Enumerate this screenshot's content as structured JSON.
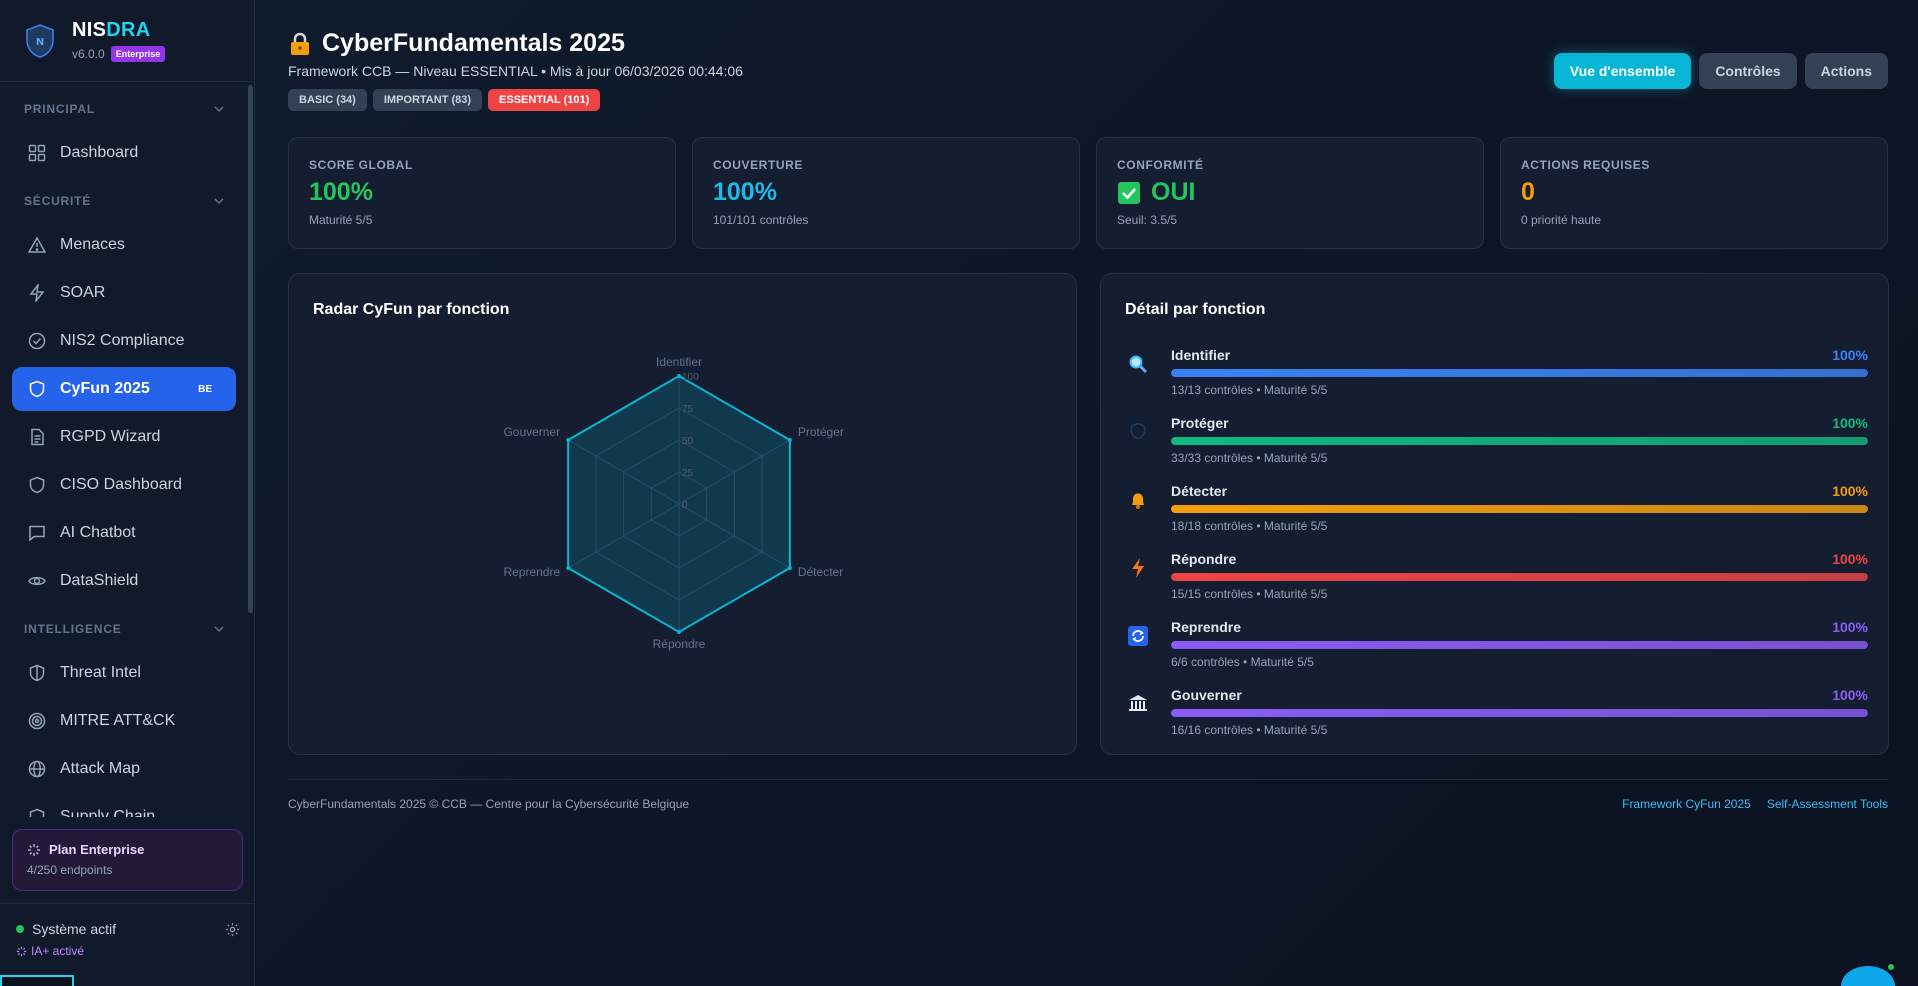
{
  "brand": {
    "name_a": "NIS",
    "name_b": "DRA",
    "version": "v6.0.0",
    "badge": "Enterprise"
  },
  "sidebar": {
    "sections": [
      {
        "title": "PRINCIPAL",
        "items": [
          {
            "label": "Dashboard",
            "icon": "grid-icon"
          }
        ]
      },
      {
        "title": "SÉCURITÉ",
        "items": [
          {
            "label": "Menaces",
            "icon": "warning-icon"
          },
          {
            "label": "SOAR",
            "icon": "lightning-icon"
          },
          {
            "label": "NIS2 Compliance",
            "icon": "check-circle-icon"
          },
          {
            "label": "CyFun 2025",
            "icon": "shield-icon",
            "badge": "BE",
            "active": true
          },
          {
            "label": "RGPD Wizard",
            "icon": "document-icon"
          },
          {
            "label": "CISO Dashboard",
            "icon": "shield-icon"
          },
          {
            "label": "AI Chatbot",
            "icon": "chat-icon"
          },
          {
            "label": "DataShield",
            "icon": "eye-icon"
          }
        ]
      },
      {
        "title": "INTELLIGENCE",
        "items": [
          {
            "label": "Threat Intel",
            "icon": "shield-half-icon"
          },
          {
            "label": "MITRE ATT&CK",
            "icon": "target-icon"
          },
          {
            "label": "Attack Map",
            "icon": "globe-icon"
          },
          {
            "label": "Supply Chain",
            "icon": "shield-icon"
          }
        ]
      }
    ],
    "plan": {
      "title": "Plan Enterprise",
      "sub": "4/250 endpoints"
    },
    "system": {
      "status": "Système actif",
      "ia": "IA+ activé"
    }
  },
  "header": {
    "title": "CyberFundamentals 2025",
    "subtitle": "Framework CCB — Niveau ESSENTIAL • Mis à jour 06/03/2026 00:44:06",
    "tags": {
      "basic": "BASIC (34)",
      "important": "IMPORTANT (83)",
      "essential": "ESSENTIAL (101)"
    },
    "buttons": {
      "overview": "Vue d'ensemble",
      "controls": "Contrôles",
      "actions": "Actions"
    }
  },
  "kpis": [
    {
      "label": "SCORE GLOBAL",
      "value": "100%",
      "sub": "Maturité 5/5",
      "color": "#22c55e"
    },
    {
      "label": "COUVERTURE",
      "value": "100%",
      "sub": "101/101 contrôles",
      "color": "#22b8e6"
    },
    {
      "label": "CONFORMITÉ",
      "value": "OUI",
      "sub": "Seuil: 3.5/5",
      "color": "#22c55e"
    },
    {
      "label": "ACTIONS REQUISES",
      "value": "0",
      "sub": "0 priorité haute",
      "color": "#f59e0b"
    }
  ],
  "radar": {
    "title": "Radar CyFun par fonction",
    "labels": [
      "Identifier",
      "Protéger",
      "Détecter",
      "Répondre",
      "Reprendre",
      "Gouverner"
    ],
    "ticks": [
      "100",
      "75",
      "50",
      "25",
      "0"
    ],
    "values": [
      100,
      100,
      100,
      100,
      100,
      100
    ],
    "color": "#06b6d4"
  },
  "detail": {
    "title": "Détail par fonction",
    "functions": [
      {
        "name": "Identifier",
        "pct": "100%",
        "fill": 100,
        "sub": "13/13 contrôles • Maturité 5/5",
        "color": "#3b82f6",
        "icon": "magnifier-icon"
      },
      {
        "name": "Protéger",
        "pct": "100%",
        "fill": 100,
        "sub": "33/33 contrôles • Maturité 5/5",
        "color": "#10b981",
        "icon": "shield-icon"
      },
      {
        "name": "Détecter",
        "pct": "100%",
        "fill": 100,
        "sub": "18/18 contrôles • Maturité 5/5",
        "color": "#f59e0b",
        "icon": "bell-icon"
      },
      {
        "name": "Répondre",
        "pct": "100%",
        "fill": 100,
        "sub": "15/15 contrôles • Maturité 5/5",
        "color": "#ef4444",
        "icon": "lightning-icon"
      },
      {
        "name": "Reprendre",
        "pct": "100%",
        "fill": 100,
        "sub": "6/6 contrôles • Maturité 5/5",
        "color": "#8b5cf6",
        "icon": "refresh-icon"
      },
      {
        "name": "Gouverner",
        "pct": "100%",
        "fill": 100,
        "sub": "16/16 contrôles • Maturité 5/5",
        "color": "#8b5cf6",
        "icon": "building-icon"
      }
    ]
  },
  "footer": {
    "copyright": "CyberFundamentals 2025 © CCB — Centre pour la Cybersécurité Belgique",
    "links": [
      "Framework CyFun 2025",
      "Self-Assessment Tools"
    ]
  }
}
